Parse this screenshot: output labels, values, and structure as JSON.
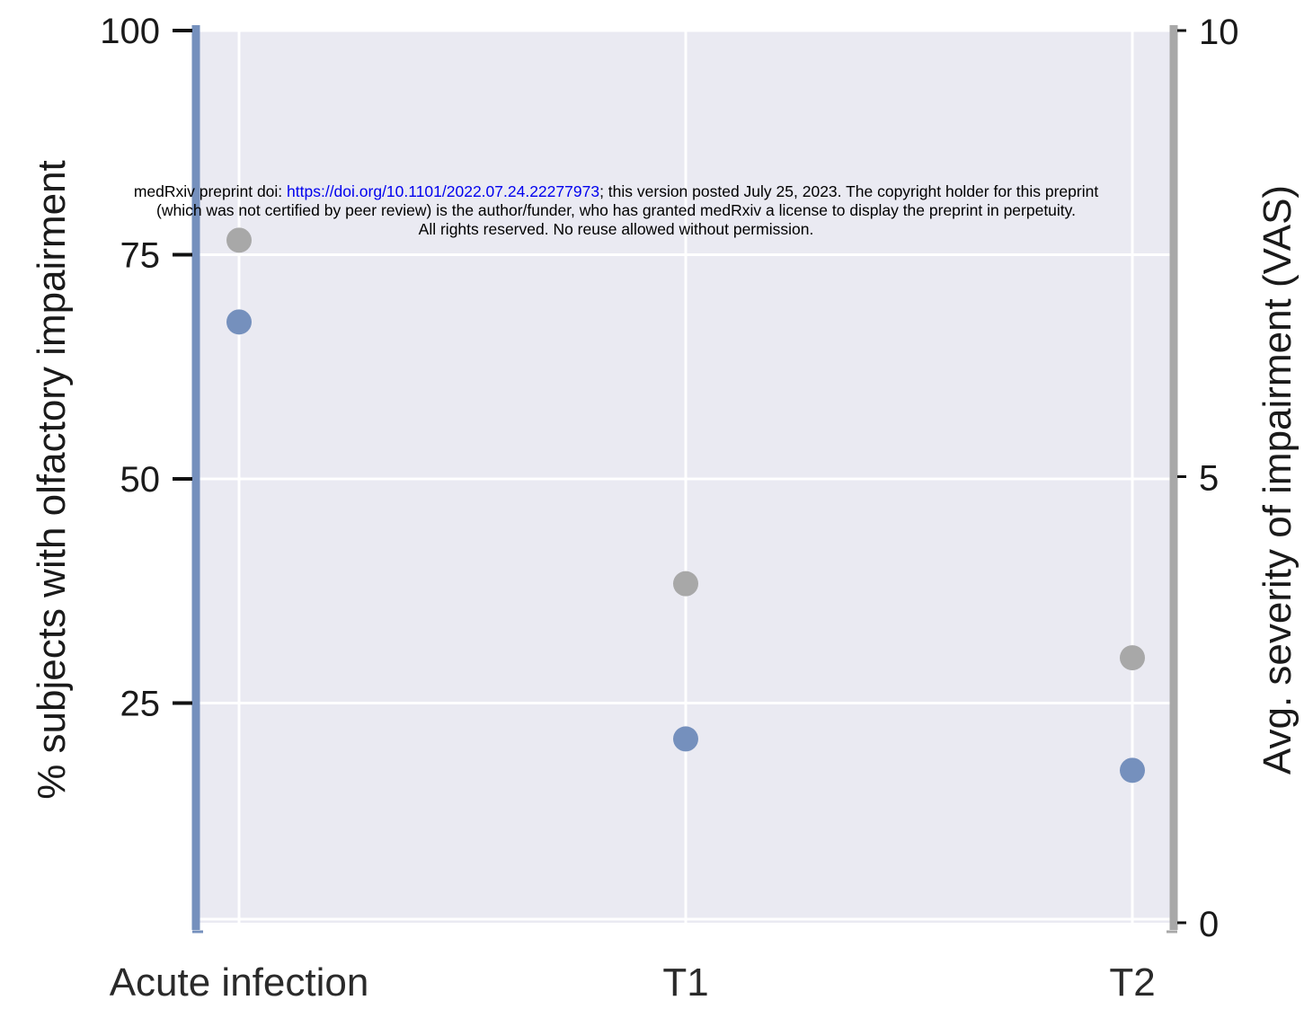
{
  "watermark": {
    "line1_prefix": "medRxiv preprint doi: ",
    "doi_link": "https://doi.org/10.1101/2022.07.24.22277973",
    "line1_suffix": "; this version posted July 25, 2023. The copyright holder for this preprint",
    "line2": "(which was not certified by peer review) is the author/funder, who has granted medRxiv a license to display the preprint in perpetuity.",
    "line3": "All rights reserved. No reuse allowed without permission."
  },
  "colors": {
    "background": "#eaeaf2",
    "grid": "#ffffff",
    "percent_series": "#7590bd",
    "severity_series": "#a8a8a8"
  },
  "chart_data": {
    "type": "scatter",
    "categories": [
      "Acute infection",
      "T1",
      "T2"
    ],
    "left_axis": {
      "label": "% subjects with olfactory impairment",
      "ticks": [
        25,
        50,
        75,
        100
      ],
      "ylim": [
        0.5,
        100
      ]
    },
    "right_axis": {
      "label": "Avg. severity of impairment (VAS)",
      "ticks": [
        0,
        5,
        10
      ],
      "ylim": [
        0,
        10
      ]
    },
    "series": [
      {
        "axis": "left",
        "color": "#7590bd",
        "values": [
          67.5,
          21,
          17.5
        ]
      },
      {
        "axis": "right",
        "color": "#a8a8a8",
        "values": [
          7.65,
          3.8,
          2.97
        ]
      }
    ],
    "grid": true,
    "legend": "none"
  }
}
